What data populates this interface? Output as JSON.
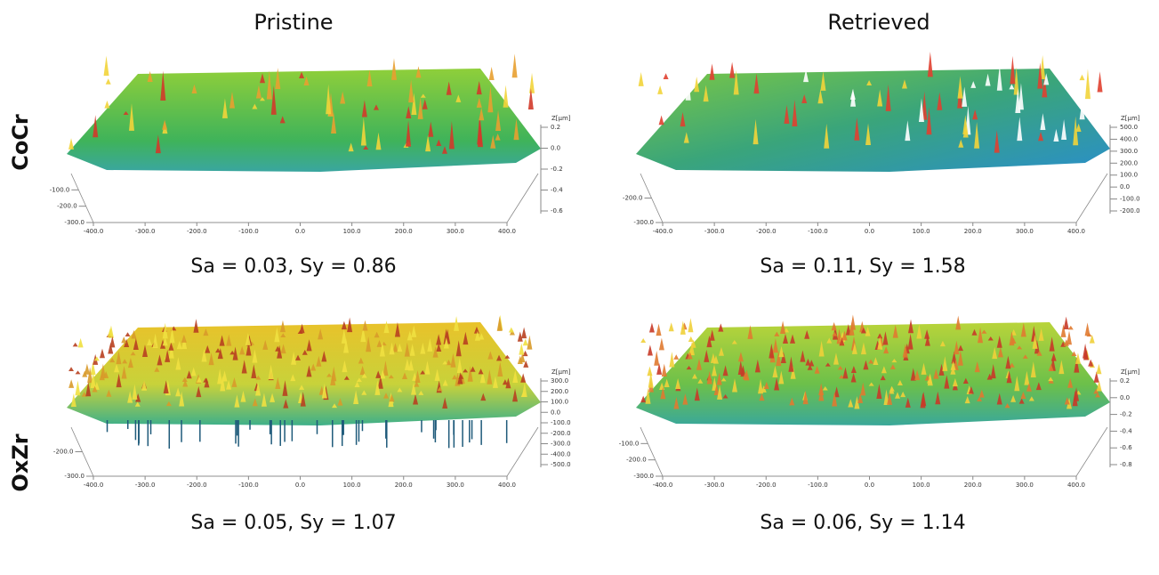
{
  "columns": [
    "Pristine",
    "Retrieved"
  ],
  "rows": [
    "CoCr",
    "OxZr"
  ],
  "panels": [
    {
      "caption": "Sa = 0.03, Sy = 0.86",
      "z_label": "Z[μm]",
      "x_ticks": [
        "-400.0",
        "-300.0",
        "-200.0",
        "-100.0",
        "0.0",
        "100.0",
        "200.0",
        "300.0",
        "400.0"
      ],
      "y_ticks": [
        "-100.0",
        "-200.0",
        "-300.0"
      ],
      "z_ticks": [
        "0.2",
        "0.0",
        "-0.2",
        "-0.4",
        "-0.6"
      ]
    },
    {
      "caption": "Sa = 0.11, Sy = 1.58",
      "z_label": "Z[μm]",
      "x_ticks": [
        "-400.0",
        "-300.0",
        "-200.0",
        "-100.0",
        "0.0",
        "100.0",
        "200.0",
        "300.0",
        "400.0"
      ],
      "y_ticks": [
        "-200.0",
        "-300.0"
      ],
      "z_ticks": [
        "500.0",
        "400.0",
        "300.0",
        "200.0",
        "100.0",
        "0.0",
        "-100.0",
        "-200.0"
      ]
    },
    {
      "caption": "Sa = 0.05, Sy = 1.07",
      "z_label": "Z[μm]",
      "x_ticks": [
        "-400.0",
        "-300.0",
        "-200.0",
        "-100.0",
        "0.0",
        "100.0",
        "200.0",
        "300.0",
        "400.0"
      ],
      "y_ticks": [
        "-200.0",
        "-300.0"
      ],
      "z_ticks": [
        "300.0",
        "200.0",
        "100.0",
        "0.0",
        "-100.0",
        "-200.0",
        "-300.0",
        "-400.0",
        "-500.0"
      ]
    },
    {
      "caption": "Sa = 0.06, Sy = 1.14",
      "z_label": "Z[μm]",
      "x_ticks": [
        "-400.0",
        "-300.0",
        "-200.0",
        "-100.0",
        "0.0",
        "100.0",
        "200.0",
        "300.0",
        "400.0"
      ],
      "y_ticks": [
        "-100.0",
        "-200.0",
        "-300.0"
      ],
      "z_ticks": [
        "0.2",
        "0.0",
        "-0.2",
        "-0.4",
        "-0.6",
        "-0.8"
      ]
    }
  ]
}
